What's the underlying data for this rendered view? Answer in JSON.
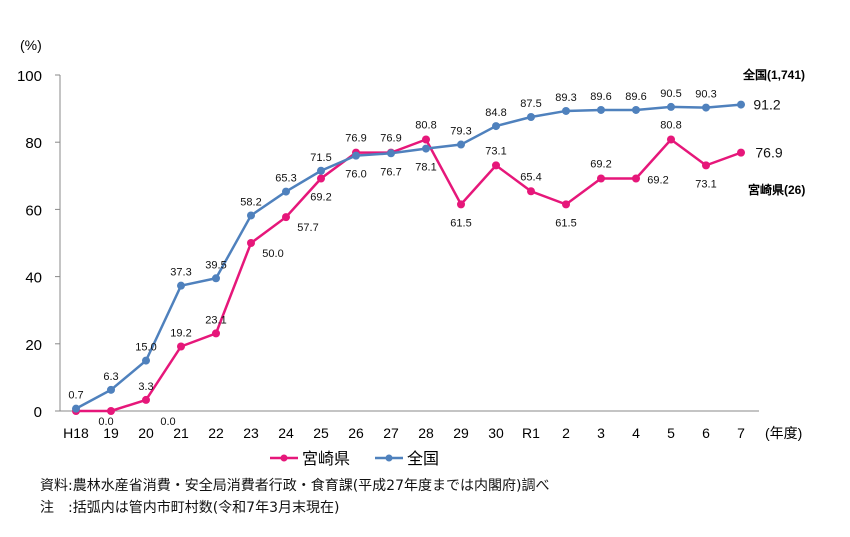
{
  "chart_data": {
    "type": "line",
    "ylabel": "(%)",
    "xlabel": "(年度)",
    "ylim": [
      0,
      100
    ],
    "yticks": [
      0,
      20,
      40,
      60,
      80,
      100
    ],
    "categories": [
      "H18",
      "19",
      "20",
      "21",
      "22",
      "23",
      "24",
      "25",
      "26",
      "27",
      "28",
      "29",
      "30",
      "R1",
      "2",
      "3",
      "4",
      "5",
      "6",
      "7"
    ],
    "series": [
      {
        "name": "宮崎県",
        "color": "#e6177a",
        "end_label": "宮崎県(26)",
        "values": [
          0.0,
          0.0,
          3.3,
          19.2,
          23.1,
          50.0,
          57.7,
          69.2,
          76.9,
          76.9,
          80.8,
          61.5,
          73.1,
          65.4,
          61.5,
          69.2,
          69.2,
          80.8,
          73.1,
          76.9
        ]
      },
      {
        "name": "全国",
        "color": "#4f81bd",
        "end_label": "全国(1,741)",
        "values": [
          0.7,
          6.3,
          15.0,
          37.3,
          39.5,
          58.2,
          65.3,
          71.5,
          76.0,
          76.7,
          78.1,
          79.3,
          84.8,
          87.5,
          89.3,
          89.6,
          89.6,
          90.5,
          90.3,
          91.2
        ]
      }
    ],
    "legend": "bottom",
    "grid": false
  },
  "notes": {
    "source": "資料:農林水産省消費・安全局消費者行政・食育課(平成27年度までは内閣府)調べ",
    "note": "注　:括弧内は管内市町村数(令和7年3月末現在)"
  }
}
